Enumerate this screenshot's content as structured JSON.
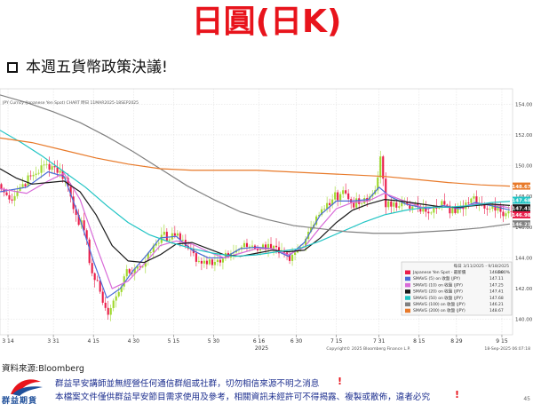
{
  "slide": {
    "title": "日圓(日K)",
    "subtitle": "本週五貨幣政策決議!",
    "source": "資料來源:Bloomberg",
    "notice_1": "群益早安講師並無經營任何通信群組或社群，切勿相信來源不明之消息",
    "notice_2": "本檔案文件僅供群益早安節目需求使用及參考，相關資訊未經許可不得揭露、複製或散佈，違者必究",
    "notice_mark": "!",
    "logo_text": "群益期貨",
    "page_number": "45"
  },
  "colors": {
    "title": "#e8141c",
    "up_candle": "#ea1c4a",
    "down_candle": "#9ed82a",
    "sma5": "#4a6ad8",
    "sma10": "#d86ad8",
    "sma20": "#1a1a1a",
    "sma50": "#20c4c4",
    "sma100": "#808080",
    "sma200": "#e87a2a"
  },
  "chart_data": {
    "type": "candlestick",
    "header_left": "JPY Curncy (Japanese Yen Spot)  CHART  時日 11MAR2025-18SEP2025",
    "header_right": "每日 3/11/2025 - 9/18/2025",
    "copyright": "Copyright© 2025 Bloomberg Finance L.P.",
    "timestamp": "18-Sep-2025 06:07:18",
    "year_label": "2025",
    "y_axis": {
      "range": [
        139,
        155
      ],
      "ticks": [
        "154.00",
        "152.00",
        "150.00",
        "148.00",
        "146.00",
        "144.00",
        "142.00",
        "140.00"
      ]
    },
    "x_axis": {
      "ticks": [
        {
          "label": "3 14",
          "day": 3
        },
        {
          "label": "3 31",
          "day": 20
        },
        {
          "label": "4 15",
          "day": 35
        },
        {
          "label": "4 30",
          "day": 50
        },
        {
          "label": "5 15",
          "day": 65
        },
        {
          "label": "5 30",
          "day": 80
        },
        {
          "label": "6 16",
          "day": 97
        },
        {
          "label": "6 30",
          "day": 111
        },
        {
          "label": "7 15",
          "day": 126
        },
        {
          "label": "7 31",
          "day": 142
        },
        {
          "label": "8 15",
          "day": 157
        },
        {
          "label": "8 29",
          "day": 171
        },
        {
          "label": "9 15",
          "day": 188
        }
      ]
    },
    "legend": {
      "position": "bottom-right",
      "entries": [
        {
          "name": "Japanese Yen Spot - 最新價",
          "value": "146.98",
          "change": "-0.00%",
          "swatch": "up_candle"
        },
        {
          "name": "SMAVG (5) on 收盤 (JPY)",
          "value": "147.11",
          "swatch": "sma5"
        },
        {
          "name": "SMAVG (10) on 收盤 (JPY)",
          "value": "147.25",
          "swatch": "sma10"
        },
        {
          "name": "SMAVG (20) on 收盤 (JPY)",
          "value": "147.41",
          "swatch": "sma20"
        },
        {
          "name": "SMAVG (50) on 收盤 (JPY)",
          "value": "147.68",
          "swatch": "sma50"
        },
        {
          "name": "SMAVG (100) on 收盤 (JPY)",
          "value": "146.21",
          "swatch": "sma100"
        },
        {
          "name": "SMAVG (200) on 收盤 (JPY)",
          "value": "148.67",
          "swatch": "sma200"
        }
      ]
    },
    "right_tags": [
      {
        "text": "148.67",
        "y": 148.67,
        "color": "#e87a2a"
      },
      {
        "text": "147.68",
        "y": 147.75,
        "color": "#20c4c4"
      },
      {
        "text": "147.41",
        "y": 147.25,
        "color": "#1a1a1a"
      },
      {
        "text": "146.98",
        "y": 146.8,
        "color": "#ea1c4a"
      },
      {
        "text": "146.21",
        "y": 146.21,
        "color": "#808080"
      }
    ],
    "close_anchors": [
      [
        0,
        148.5
      ],
      [
        3,
        147.8
      ],
      [
        8,
        148.8
      ],
      [
        12,
        149.4
      ],
      [
        17,
        150.1
      ],
      [
        20,
        149.9
      ],
      [
        24,
        149.2
      ],
      [
        28,
        146.8
      ],
      [
        31,
        145.8
      ],
      [
        34,
        143.0
      ],
      [
        37,
        141.8
      ],
      [
        40,
        140.3
      ],
      [
        43,
        141.5
      ],
      [
        46,
        142.8
      ],
      [
        50,
        143.3
      ],
      [
        54,
        143.8
      ],
      [
        57,
        144.8
      ],
      [
        60,
        145.5
      ],
      [
        63,
        145.2
      ],
      [
        66,
        145.6
      ],
      [
        70,
        144.6
      ],
      [
        74,
        143.8
      ],
      [
        78,
        143.9
      ],
      [
        82,
        143.7
      ],
      [
        86,
        144.3
      ],
      [
        90,
        144.7
      ],
      [
        94,
        144.8
      ],
      [
        97,
        144.6
      ],
      [
        100,
        144.9
      ],
      [
        104,
        144.3
      ],
      [
        108,
        143.8
      ],
      [
        112,
        144.7
      ],
      [
        115,
        145.7
      ],
      [
        118,
        146.7
      ],
      [
        121,
        147.2
      ],
      [
        124,
        147.8
      ],
      [
        128,
        148.4
      ],
      [
        131,
        147.6
      ],
      [
        134,
        147.5
      ],
      [
        137,
        147.7
      ],
      [
        140,
        148.4
      ],
      [
        142,
        150.6
      ],
      [
        144,
        147.3
      ],
      [
        147,
        147.6
      ],
      [
        150,
        147.6
      ],
      [
        153,
        147.2
      ],
      [
        156,
        147.3
      ],
      [
        159,
        147.0
      ],
      [
        162,
        147.4
      ],
      [
        165,
        147.7
      ],
      [
        168,
        146.9
      ],
      [
        171,
        147.3
      ],
      [
        174,
        147.6
      ],
      [
        177,
        148.0
      ],
      [
        180,
        147.5
      ],
      [
        183,
        147.2
      ],
      [
        186,
        147.4
      ],
      [
        189,
        146.9
      ],
      [
        191,
        146.98
      ]
    ],
    "series": [
      {
        "name": "SMAVG (5) on 收盤 (JPY)",
        "key": "sma5",
        "points": [
          [
            0,
            148.3
          ],
          [
            10,
            148.6
          ],
          [
            18,
            149.6
          ],
          [
            24,
            149.3
          ],
          [
            30,
            146.5
          ],
          [
            35,
            143.8
          ],
          [
            40,
            141.4
          ],
          [
            45,
            142.0
          ],
          [
            50,
            143.2
          ],
          [
            55,
            144.2
          ],
          [
            60,
            145.3
          ],
          [
            66,
            145.4
          ],
          [
            72,
            144.5
          ],
          [
            78,
            144.0
          ],
          [
            84,
            144.0
          ],
          [
            90,
            144.6
          ],
          [
            96,
            144.7
          ],
          [
            102,
            144.6
          ],
          [
            108,
            144.1
          ],
          [
            114,
            145.0
          ],
          [
            120,
            146.8
          ],
          [
            126,
            147.7
          ],
          [
            132,
            147.7
          ],
          [
            138,
            147.8
          ],
          [
            142,
            148.6
          ],
          [
            146,
            148.0
          ],
          [
            152,
            147.5
          ],
          [
            160,
            147.2
          ],
          [
            166,
            147.4
          ],
          [
            172,
            147.2
          ],
          [
            178,
            147.6
          ],
          [
            184,
            147.4
          ],
          [
            191,
            147.11
          ]
        ]
      },
      {
        "name": "SMAVG (10) on 收盤 (JPY)",
        "key": "sma10",
        "points": [
          [
            0,
            148.5
          ],
          [
            10,
            148.2
          ],
          [
            18,
            149.0
          ],
          [
            24,
            149.5
          ],
          [
            30,
            147.8
          ],
          [
            36,
            144.8
          ],
          [
            42,
            142.0
          ],
          [
            48,
            142.5
          ],
          [
            54,
            143.6
          ],
          [
            60,
            144.8
          ],
          [
            66,
            145.1
          ],
          [
            72,
            144.9
          ],
          [
            78,
            144.4
          ],
          [
            84,
            144.0
          ],
          [
            90,
            144.3
          ],
          [
            96,
            144.6
          ],
          [
            102,
            144.6
          ],
          [
            108,
            144.2
          ],
          [
            114,
            144.7
          ],
          [
            120,
            146.0
          ],
          [
            126,
            147.2
          ],
          [
            132,
            147.6
          ],
          [
            138,
            147.7
          ],
          [
            144,
            148.2
          ],
          [
            150,
            147.8
          ],
          [
            158,
            147.3
          ],
          [
            166,
            147.3
          ],
          [
            172,
            147.3
          ],
          [
            178,
            147.5
          ],
          [
            184,
            147.5
          ],
          [
            191,
            147.25
          ]
        ]
      },
      {
        "name": "SMAVG (20) on 收盤 (JPY)",
        "key": "sma20",
        "points": [
          [
            0,
            149.8
          ],
          [
            6,
            149.2
          ],
          [
            12,
            148.8
          ],
          [
            18,
            148.9
          ],
          [
            24,
            149.0
          ],
          [
            30,
            148.3
          ],
          [
            36,
            146.8
          ],
          [
            42,
            144.8
          ],
          [
            48,
            143.8
          ],
          [
            54,
            143.7
          ],
          [
            60,
            144.2
          ],
          [
            66,
            144.9
          ],
          [
            72,
            145.0
          ],
          [
            78,
            144.6
          ],
          [
            84,
            144.2
          ],
          [
            90,
            144.1
          ],
          [
            96,
            144.3
          ],
          [
            102,
            144.5
          ],
          [
            108,
            144.4
          ],
          [
            114,
            144.5
          ],
          [
            120,
            145.3
          ],
          [
            126,
            146.3
          ],
          [
            132,
            147.1
          ],
          [
            138,
            147.5
          ],
          [
            144,
            147.8
          ],
          [
            150,
            147.7
          ],
          [
            158,
            147.5
          ],
          [
            166,
            147.3
          ],
          [
            172,
            147.3
          ],
          [
            178,
            147.4
          ],
          [
            184,
            147.5
          ],
          [
            191,
            147.41
          ]
        ]
      },
      {
        "name": "SMAVG (50) on 收盤 (JPY)",
        "key": "sma50",
        "points": [
          [
            0,
            152.3
          ],
          [
            8,
            151.5
          ],
          [
            16,
            150.6
          ],
          [
            24,
            149.6
          ],
          [
            32,
            148.6
          ],
          [
            40,
            147.4
          ],
          [
            48,
            146.3
          ],
          [
            56,
            145.5
          ],
          [
            64,
            145.0
          ],
          [
            72,
            144.6
          ],
          [
            80,
            144.3
          ],
          [
            88,
            144.1
          ],
          [
            96,
            144.2
          ],
          [
            104,
            144.4
          ],
          [
            112,
            144.6
          ],
          [
            120,
            145.1
          ],
          [
            128,
            145.7
          ],
          [
            136,
            146.3
          ],
          [
            144,
            146.8
          ],
          [
            152,
            147.1
          ],
          [
            160,
            147.3
          ],
          [
            168,
            147.3
          ],
          [
            176,
            147.4
          ],
          [
            184,
            147.6
          ],
          [
            191,
            147.68
          ]
        ]
      },
      {
        "name": "SMAVG (100) on 收盤 (JPY)",
        "key": "sma100",
        "points": [
          [
            0,
            154.6
          ],
          [
            10,
            154.1
          ],
          [
            20,
            153.5
          ],
          [
            30,
            152.8
          ],
          [
            40,
            151.9
          ],
          [
            50,
            150.9
          ],
          [
            60,
            149.8
          ],
          [
            70,
            148.7
          ],
          [
            80,
            147.8
          ],
          [
            90,
            147.0
          ],
          [
            100,
            146.5
          ],
          [
            110,
            146.1
          ],
          [
            120,
            145.9
          ],
          [
            130,
            145.7
          ],
          [
            140,
            145.6
          ],
          [
            150,
            145.6
          ],
          [
            160,
            145.7
          ],
          [
            170,
            145.8
          ],
          [
            180,
            145.95
          ],
          [
            191,
            146.21
          ]
        ]
      },
      {
        "name": "SMAVG (200) on 收盤 (JPY)",
        "key": "sma200",
        "points": [
          [
            0,
            151.8
          ],
          [
            12,
            151.5
          ],
          [
            24,
            151.0
          ],
          [
            36,
            150.5
          ],
          [
            48,
            150.1
          ],
          [
            60,
            149.8
          ],
          [
            72,
            149.7
          ],
          [
            84,
            149.7
          ],
          [
            96,
            149.7
          ],
          [
            108,
            149.6
          ],
          [
            120,
            149.5
          ],
          [
            132,
            149.4
          ],
          [
            144,
            149.3
          ],
          [
            156,
            149.1
          ],
          [
            168,
            148.9
          ],
          [
            180,
            148.75
          ],
          [
            191,
            148.67
          ]
        ]
      }
    ]
  }
}
